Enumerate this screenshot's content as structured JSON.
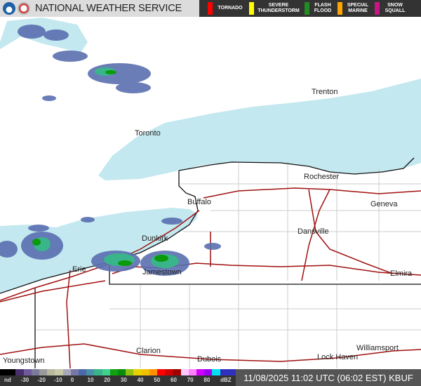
{
  "header": {
    "title": "NATIONAL WEATHER SERVICE",
    "legend": [
      {
        "label": "TORNADO",
        "color": "#ff0000"
      },
      {
        "label": "SEVERE\nTHUNDERSTORM",
        "color": "#ffff00"
      },
      {
        "label": "FLASH\nFLOOD",
        "color": "#228b22"
      },
      {
        "label": "SPECIAL\nMARINE",
        "color": "#ffa500"
      },
      {
        "label": "SNOW\nSQUALL",
        "color": "#c71585"
      }
    ]
  },
  "map": {
    "cities": [
      "Trenton",
      "Toronto",
      "Rochester",
      "Geneva",
      "Buffalo",
      "Dansville",
      "Dunkirk",
      "Jamestown",
      "Erie",
      "Elmira",
      "Youngstown",
      "Clarion",
      "Dubois",
      "Lock Haven",
      "Williamsport"
    ],
    "water_color": "#c3e8ef",
    "road_color": "#a01010"
  },
  "footer": {
    "scale_ticks": [
      "nd",
      "-30",
      "-20",
      "-10",
      "0",
      "10",
      "20",
      "30",
      "40",
      "50",
      "60",
      "70",
      "80",
      "dBZ"
    ],
    "timestamp": "11/08/2025 11:02 UTC (06:02 EST)",
    "station": "KBUF"
  }
}
